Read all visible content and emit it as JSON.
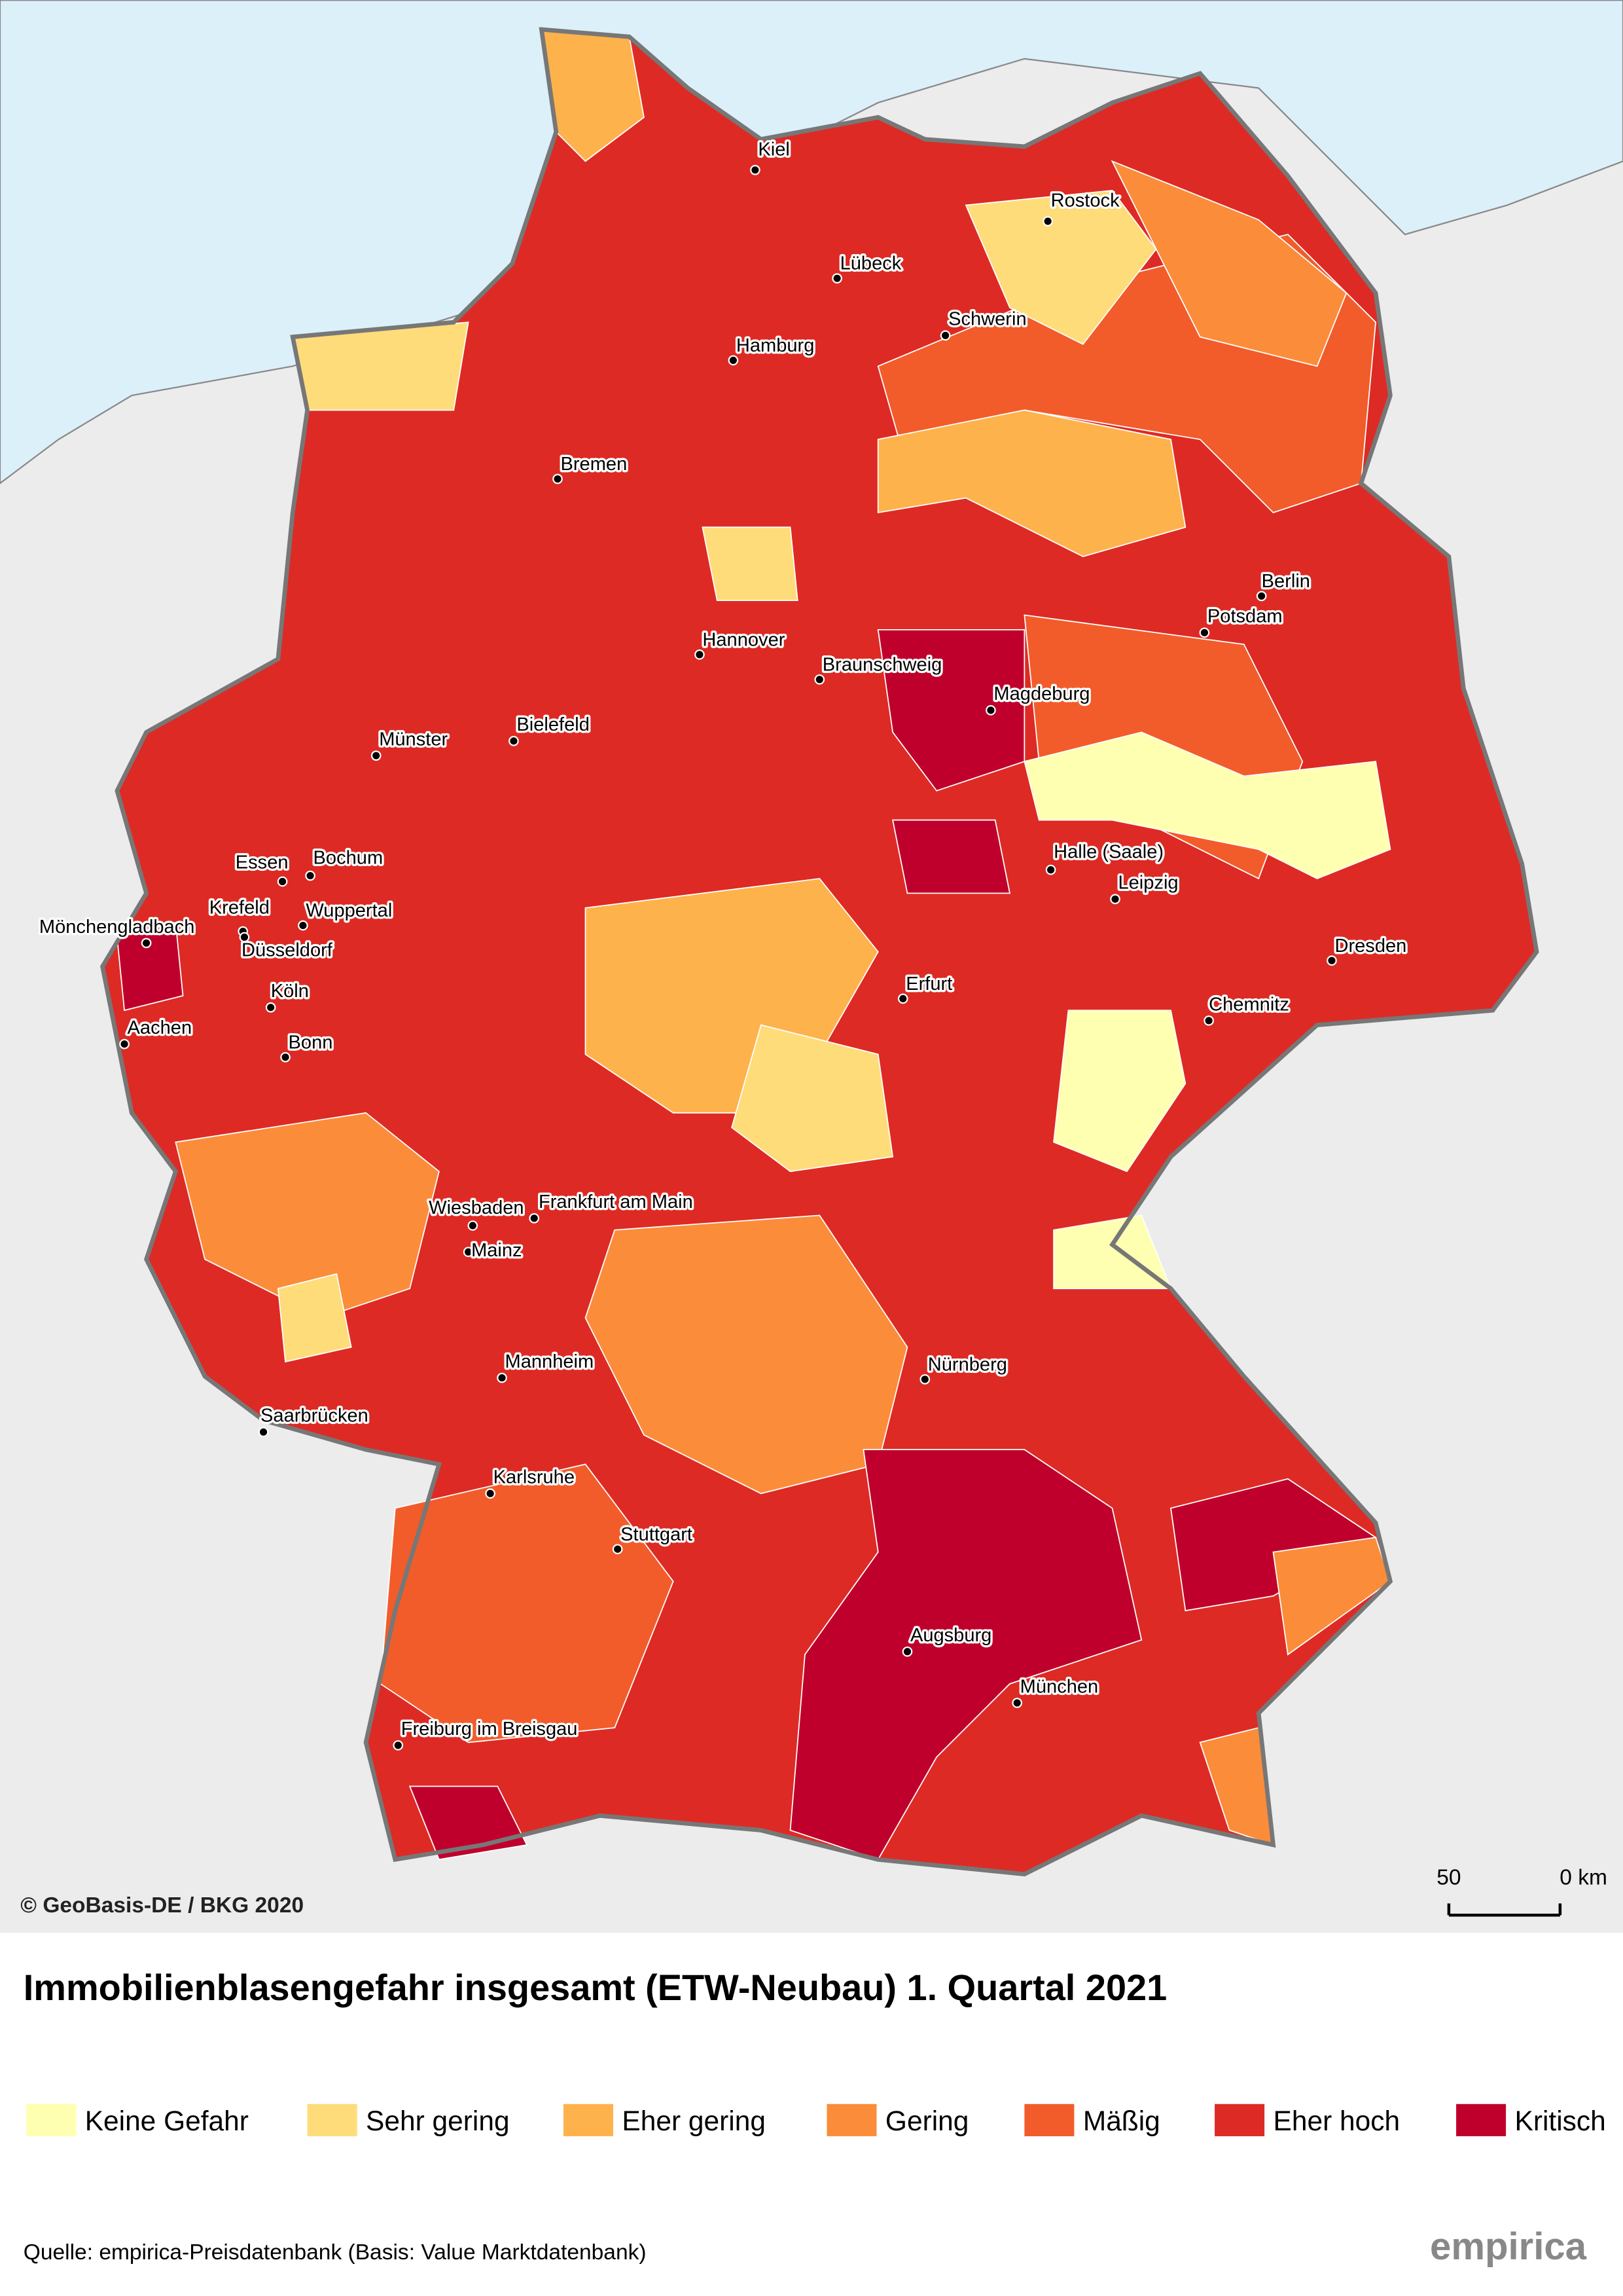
{
  "map": {
    "title": "Immobilienblasengefahr insgesamt (ETW-Neubau) 1. Quartal 2021",
    "copyright": "© GeoBasis-DE / BKG 2020",
    "scale_labels": [
      "50",
      "0 km"
    ],
    "legend": [
      {
        "label": "Keine Gefahr",
        "color": "#ffffb2"
      },
      {
        "label": "Sehr gering",
        "color": "#fedc7a"
      },
      {
        "label": "Eher gering",
        "color": "#feb24c"
      },
      {
        "label": "Gering",
        "color": "#fb8c3a"
      },
      {
        "label": "Mäßig",
        "color": "#f25c2a"
      },
      {
        "label": "Eher hoch",
        "color": "#de2a24"
      },
      {
        "label": "Kritisch",
        "color": "#c0002c"
      }
    ],
    "cities": [
      "Kiel",
      "Rostock",
      "Lübeck",
      "Schwerin",
      "Hamburg",
      "Bremen",
      "Berlin",
      "Potsdam",
      "Hannover",
      "Braunschweig",
      "Magdeburg",
      "Münster",
      "Bielefeld",
      "Halle (Saale)",
      "Leipzig",
      "Essen",
      "Bochum",
      "Krefeld",
      "Mönchengladbach",
      "Wuppertal",
      "Düsseldorf",
      "Dresden",
      "Erfurt",
      "Chemnitz",
      "Köln",
      "Aachen",
      "Bonn",
      "Wiesbaden",
      "Frankfurt am Main",
      "Mainz",
      "Mannheim",
      "Nürnberg",
      "Saarbrücken",
      "Karlsruhe",
      "Stuttgart",
      "Augsburg",
      "München",
      "Freiburg im Breisgau"
    ],
    "source": "Quelle: empirica-Preisdatenbank (Basis: Value Marktdatenbank)",
    "brand": "empirica"
  }
}
